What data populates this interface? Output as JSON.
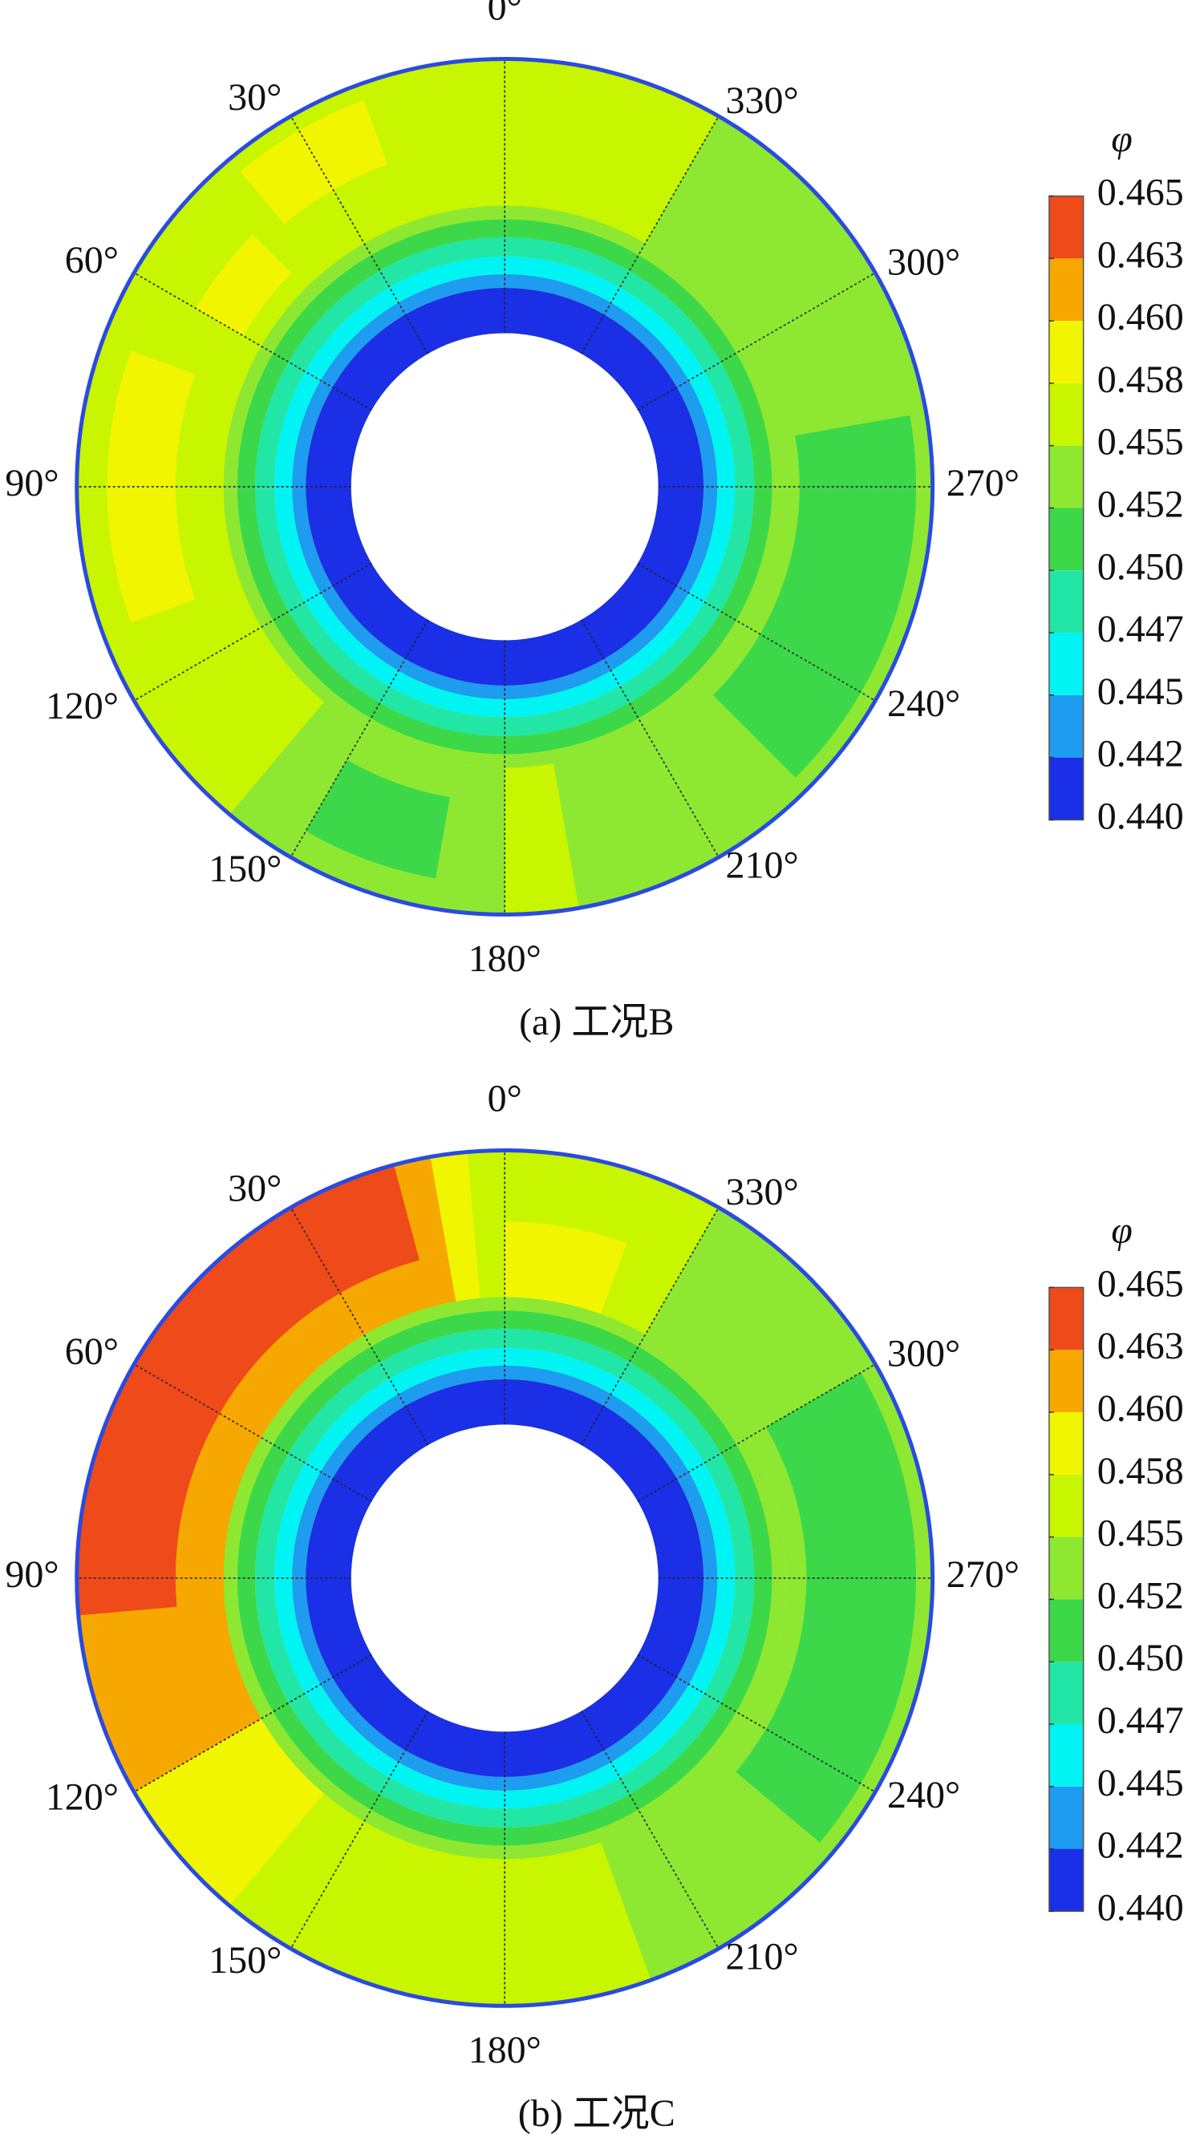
{
  "chart_data": [
    {
      "type": "polar-contour",
      "caption": "(a) 工况B",
      "colorbar_label": "φ",
      "angle_ticks": [
        {
          "value": 0,
          "label": "0°"
        },
        {
          "value": 30,
          "label": "30°"
        },
        {
          "value": 60,
          "label": "60°"
        },
        {
          "value": 90,
          "label": "90°"
        },
        {
          "value": 120,
          "label": "120°"
        },
        {
          "value": 150,
          "label": "150°"
        },
        {
          "value": 180,
          "label": "180°"
        },
        {
          "value": 210,
          "label": "210°"
        },
        {
          "value": 240,
          "label": "240°"
        },
        {
          "value": 270,
          "label": "270°"
        },
        {
          "value": 300,
          "label": "300°"
        },
        {
          "value": 330,
          "label": "330°"
        }
      ],
      "clim": [
        0.44,
        0.465
      ],
      "cticks": [
        {
          "value": 0.44,
          "label": "0.440"
        },
        {
          "value": 0.4425,
          "label": "0.442"
        },
        {
          "value": 0.445,
          "label": "0.445"
        },
        {
          "value": 0.4475,
          "label": "0.447"
        },
        {
          "value": 0.45,
          "label": "0.450"
        },
        {
          "value": 0.4525,
          "label": "0.452"
        },
        {
          "value": 0.455,
          "label": "0.455"
        },
        {
          "value": 0.4575,
          "label": "0.458"
        },
        {
          "value": 0.46,
          "label": "0.460"
        },
        {
          "value": 0.4625,
          "label": "0.463"
        },
        {
          "value": 0.465,
          "label": "0.465"
        }
      ],
      "colors": [
        "#1a2fe6",
        "#1e9cf0",
        "#00f4f4",
        "#22e6a6",
        "#3cd84a",
        "#8ee832",
        "#c8f500",
        "#f2f500",
        "#f7a800",
        "#ef4a1a"
      ]
    },
    {
      "type": "polar-contour",
      "caption": "(b) 工况C",
      "colorbar_label": "φ",
      "angle_ticks": [
        {
          "value": 0,
          "label": "0°"
        },
        {
          "value": 30,
          "label": "30°"
        },
        {
          "value": 60,
          "label": "60°"
        },
        {
          "value": 90,
          "label": "90°"
        },
        {
          "value": 120,
          "label": "120°"
        },
        {
          "value": 150,
          "label": "150°"
        },
        {
          "value": 180,
          "label": "180°"
        },
        {
          "value": 210,
          "label": "210°"
        },
        {
          "value": 240,
          "label": "240°"
        },
        {
          "value": 270,
          "label": "270°"
        },
        {
          "value": 300,
          "label": "300°"
        },
        {
          "value": 330,
          "label": "330°"
        }
      ],
      "clim": [
        0.44,
        0.465
      ],
      "cticks": [
        {
          "value": 0.44,
          "label": "0.440"
        },
        {
          "value": 0.4425,
          "label": "0.442"
        },
        {
          "value": 0.445,
          "label": "0.445"
        },
        {
          "value": 0.4475,
          "label": "0.447"
        },
        {
          "value": 0.45,
          "label": "0.450"
        },
        {
          "value": 0.4525,
          "label": "0.452"
        },
        {
          "value": 0.455,
          "label": "0.455"
        },
        {
          "value": 0.4575,
          "label": "0.458"
        },
        {
          "value": 0.46,
          "label": "0.460"
        },
        {
          "value": 0.4625,
          "label": "0.463"
        },
        {
          "value": 0.465,
          "label": "0.465"
        }
      ],
      "colors": [
        "#1a2fe6",
        "#1e9cf0",
        "#00f4f4",
        "#22e6a6",
        "#3cd84a",
        "#8ee832",
        "#c8f500",
        "#f2f500",
        "#f7a800",
        "#ef4a1a"
      ]
    }
  ]
}
